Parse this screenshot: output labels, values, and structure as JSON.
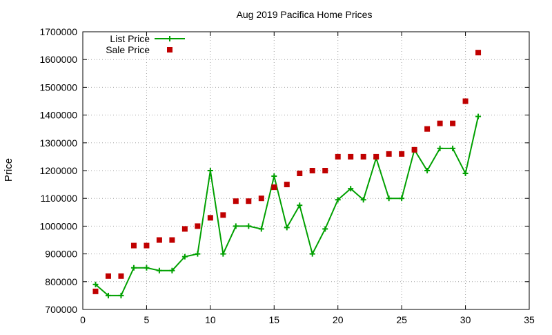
{
  "chart_data": {
    "type": "line",
    "title": "Aug 2019 Pacifica Home Prices",
    "xlabel": "",
    "ylabel": "Price",
    "xlim": [
      0,
      35
    ],
    "ylim": [
      700000,
      1700000
    ],
    "x_ticks": [
      0,
      5,
      10,
      15,
      20,
      25,
      30,
      35
    ],
    "y_ticks": [
      700000,
      800000,
      900000,
      1000000,
      1100000,
      1200000,
      1300000,
      1400000,
      1500000,
      1600000,
      1700000
    ],
    "grid": true,
    "legend_position": "top-left",
    "series": [
      {
        "name": "List Price",
        "style": "line+cross",
        "color": "#00a000",
        "x": [
          1,
          2,
          3,
          4,
          5,
          6,
          7,
          8,
          9,
          10,
          11,
          12,
          13,
          14,
          15,
          16,
          17,
          18,
          19,
          20,
          21,
          22,
          23,
          24,
          25,
          26,
          27,
          28,
          29,
          30,
          31
        ],
        "values": [
          790000,
          750000,
          750000,
          850000,
          850000,
          840000,
          840000,
          890000,
          900000,
          1200000,
          900000,
          1000000,
          1000000,
          990000,
          1180000,
          995000,
          1075000,
          900000,
          990000,
          1095000,
          1135000,
          1095000,
          1245000,
          1100000,
          1100000,
          1275000,
          1200000,
          1280000,
          1280000,
          1190000,
          1395000
        ]
      },
      {
        "name": "Sale Price",
        "style": "square",
        "color": "#c00000",
        "x": [
          1,
          2,
          3,
          4,
          5,
          6,
          7,
          8,
          9,
          10,
          11,
          12,
          13,
          14,
          15,
          16,
          17,
          18,
          19,
          20,
          21,
          22,
          23,
          24,
          25,
          26,
          27,
          28,
          29,
          30,
          31
        ],
        "values": [
          765000,
          820000,
          820000,
          930000,
          930000,
          950000,
          950000,
          990000,
          1000000,
          1030000,
          1040000,
          1090000,
          1090000,
          1100000,
          1140000,
          1150000,
          1190000,
          1200000,
          1200000,
          1250000,
          1250000,
          1250000,
          1250000,
          1260000,
          1260000,
          1275000,
          1350000,
          1370000,
          1370000,
          1450000,
          1625000
        ]
      }
    ]
  }
}
